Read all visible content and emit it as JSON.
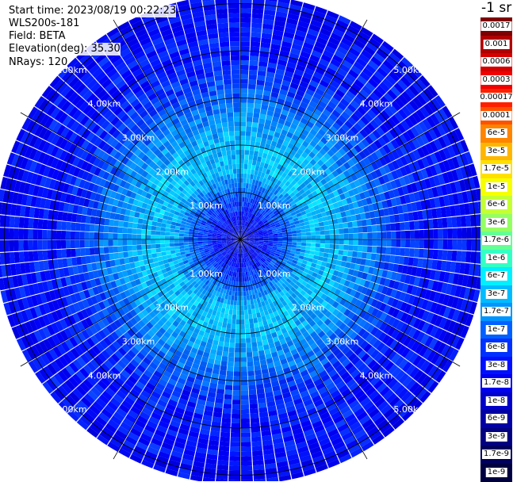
{
  "info": {
    "start_time": "Start time: 2023/08/19 00:22:23",
    "device": "WLS200s-181",
    "field": "Field: BETA",
    "elevation": "Elevation(deg): 35.30",
    "nrays": "NRays: 120"
  },
  "unit_label": "-1 sr",
  "chart_data": {
    "type": "heatmap",
    "projection": "polar (PPI scan)",
    "n_rays": 120,
    "range_rings_km": [
      1.0,
      2.0,
      3.0,
      4.0,
      5.0
    ],
    "range_labels": [
      "1.00km",
      "2.00km",
      "3.00km",
      "4.00km",
      "5.00km"
    ],
    "max_range_km": 5.0,
    "spokes_every_deg": 30,
    "colorbar": {
      "labels": [
        "0.0017",
        "0.001",
        "0.0006",
        "0.0003",
        "0.00017",
        "0.0001",
        "6e-5",
        "3e-5",
        "1.7e-5",
        "1e-5",
        "6e-6",
        "3e-6",
        "1.7e-6",
        "1e-6",
        "6e-7",
        "3e-7",
        "1.7e-7",
        "1e-7",
        "6e-8",
        "3e-8",
        "1.7e-8",
        "1e-8",
        "6e-9",
        "3e-9",
        "1.7e-9",
        "1e-9"
      ],
      "colors": [
        "#7f0000",
        "#b00000",
        "#d40000",
        "#f00000",
        "#ff2000",
        "#ff5200",
        "#ff8400",
        "#ffb600",
        "#ffe000",
        "#f6ff00",
        "#c4ff33",
        "#94ff63",
        "#63ff94",
        "#33ffc4",
        "#00f0ff",
        "#00bcff",
        "#0094ff",
        "#0060ff",
        "#0030ff",
        "#0010ff",
        "#0000ee",
        "#0000c8",
        "#0000a4",
        "#000080",
        "#00005c",
        "#000040"
      ],
      "scale": "log"
    },
    "range_profile": [
      {
        "range_km": 0.0,
        "level": "1e-8"
      },
      {
        "range_km": 0.5,
        "level": "3e-8"
      },
      {
        "range_km": 1.0,
        "level": "1e-7"
      },
      {
        "range_km": 1.5,
        "level": "3e-7"
      },
      {
        "range_km": 2.0,
        "level": "3e-7"
      },
      {
        "range_km": 2.5,
        "level": "1.7e-7"
      },
      {
        "range_km": 3.0,
        "level": "1e-7"
      },
      {
        "range_km": 3.5,
        "level": "6e-8"
      },
      {
        "range_km": 4.0,
        "level": "3e-8"
      },
      {
        "range_km": 4.5,
        "level": "3e-8"
      },
      {
        "range_km": 5.0,
        "level": "1.7e-8"
      }
    ]
  }
}
